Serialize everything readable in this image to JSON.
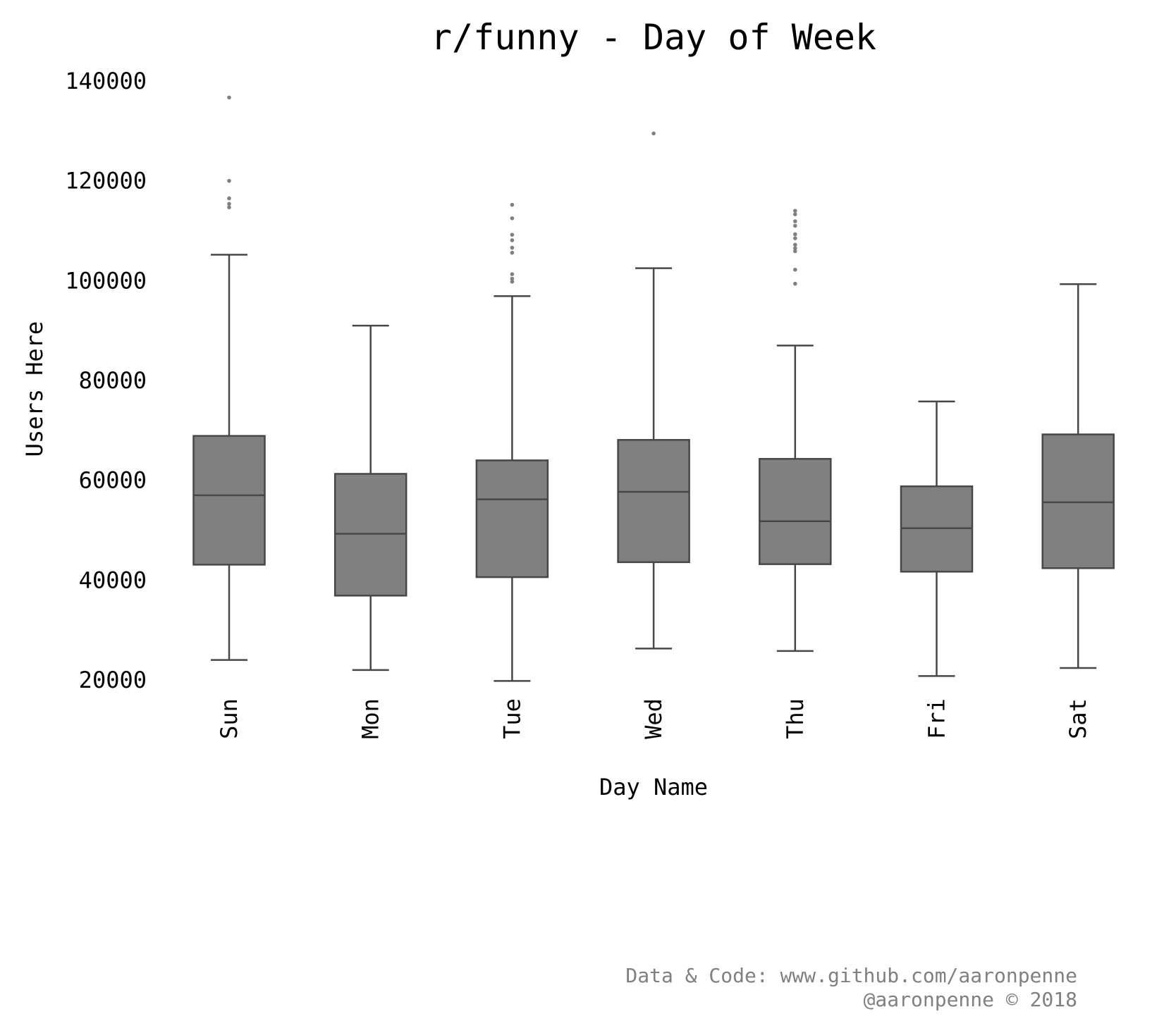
{
  "chart_data": {
    "type": "box",
    "title": "r/funny - Day of Week",
    "xlabel": "Day Name",
    "ylabel": "Users Here",
    "categories": [
      "Sun",
      "Mon",
      "Tue",
      "Wed",
      "Thu",
      "Fri",
      "Sat"
    ],
    "yticks": [
      20000,
      40000,
      60000,
      80000,
      100000,
      120000,
      140000
    ],
    "ytick_labels": [
      "20000",
      "40000",
      "60000",
      "80000",
      "100000",
      "120000",
      "140000"
    ],
    "ylim": [
      15000,
      141000
    ],
    "grid": false,
    "series": [
      {
        "name": "Sun",
        "whisker_low": 24000,
        "q1": 43100,
        "median": 57000,
        "q3": 68900,
        "whisker_high": 105200,
        "outliers": [
          114700,
          115400,
          116500,
          120000,
          136700
        ]
      },
      {
        "name": "Mon",
        "whisker_low": 22000,
        "q1": 36900,
        "median": 49300,
        "q3": 61300,
        "whisker_high": 91000,
        "outliers": []
      },
      {
        "name": "Tue",
        "whisker_low": 19800,
        "q1": 40600,
        "median": 56200,
        "q3": 64000,
        "whisker_high": 96900,
        "outliers": [
          99800,
          100400,
          101300,
          105600,
          106600,
          108100,
          109200,
          112500,
          115200
        ]
      },
      {
        "name": "Wed",
        "whisker_low": 26300,
        "q1": 43600,
        "median": 57700,
        "q3": 68100,
        "whisker_high": 102500,
        "outliers": [
          129500
        ]
      },
      {
        "name": "Thu",
        "whisker_low": 25800,
        "q1": 43200,
        "median": 51800,
        "q3": 64300,
        "whisker_high": 87000,
        "outliers": [
          99400,
          102200,
          105900,
          106500,
          107200,
          108500,
          109300,
          111000,
          111900,
          113300,
          114000
        ]
      },
      {
        "name": "Fri",
        "whisker_low": 20800,
        "q1": 41700,
        "median": 50400,
        "q3": 58800,
        "whisker_high": 75800,
        "outliers": []
      },
      {
        "name": "Sat",
        "whisker_low": 22400,
        "q1": 42400,
        "median": 55600,
        "q3": 69200,
        "whisker_high": 99300,
        "outliers": []
      }
    ],
    "colors": {
      "box_fill": "#808080",
      "box_edge": "#474747",
      "outlier": "#808080",
      "text": "#000000"
    }
  },
  "footer": {
    "line1": "Data & Code: www.github.com/aaronpenne",
    "line2": "@aaronpenne © 2018"
  }
}
